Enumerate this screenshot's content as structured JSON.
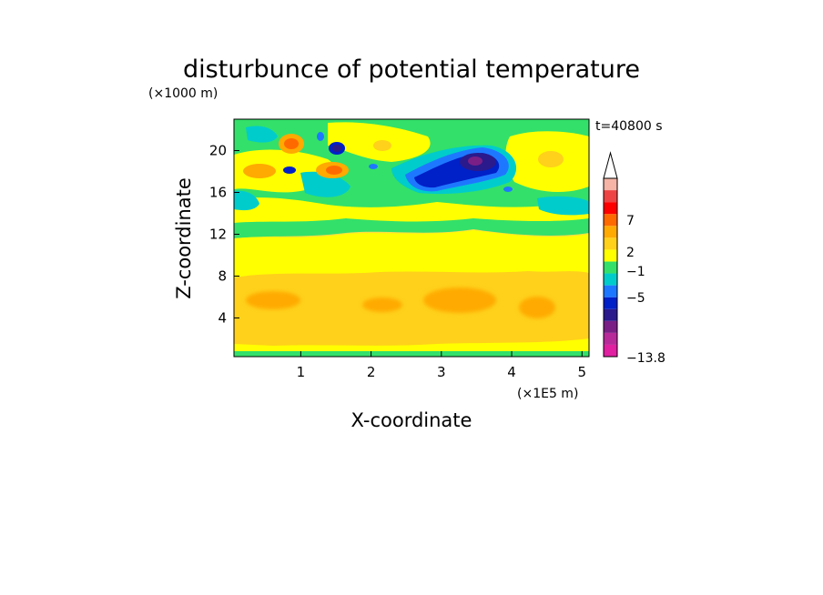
{
  "chart_data": {
    "type": "heatmap",
    "title": "disturbunce of potential temperature",
    "time_label": "t=40800 s",
    "xlabel": "X-coordinate",
    "ylabel": "Z-coordinate",
    "x_unit": "(×1E5 m)",
    "y_unit": "(×1000 m)",
    "xlim": [
      0.05,
      5.1
    ],
    "ylim": [
      0.3,
      23.0
    ],
    "x_ticks": [
      "1",
      "2",
      "3",
      "4",
      "5"
    ],
    "y_ticks": [
      "4",
      "8",
      "12",
      "16",
      "20"
    ],
    "colorbar": {
      "labels": [
        "7",
        "2",
        "−1",
        "−5",
        "−13.8"
      ],
      "levels": [
        -13.8,
        -11,
        -9,
        -7,
        -5,
        -3,
        -2,
        -1,
        0,
        1,
        2,
        3,
        5,
        7,
        9,
        11
      ],
      "colors": [
        "#e020a0",
        "#b82a9a",
        "#7a1f86",
        "#2a1a8c",
        "#0020c8",
        "#1e78ff",
        "#00cccc",
        "#33e06a",
        "#ffff00",
        "#ffd11a",
        "#ffaa00",
        "#ff6a00",
        "#ff0000",
        "#ee4444",
        "#f5b4a6"
      ]
    },
    "background_color": "#ffdd44",
    "features": [
      {
        "x": 3.5,
        "z": 18.7,
        "value": -11
      },
      {
        "x": 3.45,
        "z": 18.5,
        "value": -8
      },
      {
        "x": 3.0,
        "z": 16.9,
        "value": -5
      },
      {
        "x": 1.52,
        "z": 20.2,
        "value": -5
      },
      {
        "x": 0.83,
        "z": 20.8,
        "value": 3
      },
      {
        "x": 1.45,
        "z": 17.6,
        "value": 3
      },
      {
        "x": 0.3,
        "z": 17.8,
        "value": 2
      },
      {
        "x": 3.3,
        "z": 6.0,
        "value": 2
      },
      {
        "x": 4.4,
        "z": 5.7,
        "value": 2
      },
      {
        "x": 1.5,
        "z": 5.5,
        "value": 2
      },
      {
        "x": 2.7,
        "z": 14.2,
        "value": -1
      },
      {
        "x": 4.9,
        "z": 14.8,
        "value": -1
      }
    ]
  }
}
